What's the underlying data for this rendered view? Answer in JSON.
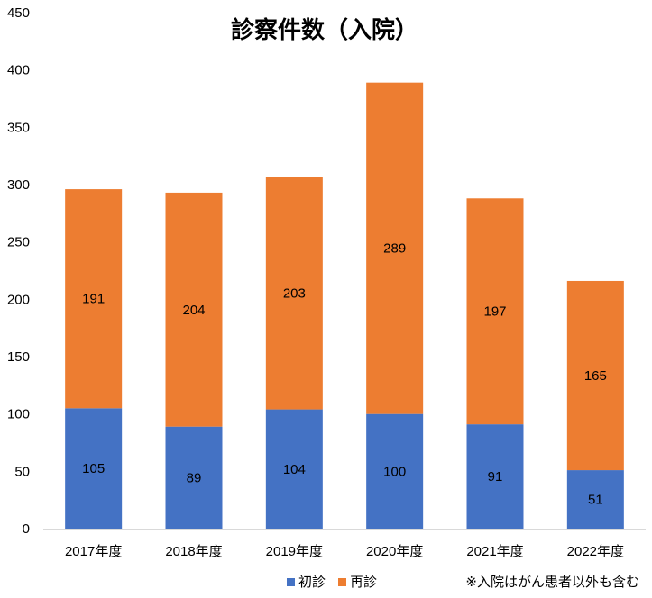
{
  "colors": {
    "first_visit": "#4472C4",
    "return_visit": "#ED7D31",
    "axis_line": "#d9d9d9",
    "text": "#000000"
  },
  "chart_data": {
    "type": "bar",
    "stacked": true,
    "title": "診察件数（入院）",
    "xlabel": "",
    "ylabel": "",
    "ylim": [
      0,
      450
    ],
    "yticks": [
      0,
      50,
      100,
      150,
      200,
      250,
      300,
      350,
      400,
      450
    ],
    "grid": false,
    "legend_position": "bottom",
    "categories": [
      "2017年度",
      "2018年度",
      "2019年度",
      "2020年度",
      "2021年度",
      "2022年度"
    ],
    "series": [
      {
        "name": "初診",
        "values": [
          105,
          89,
          104,
          100,
          91,
          51
        ]
      },
      {
        "name": "再診",
        "values": [
          191,
          204,
          203,
          289,
          197,
          165
        ]
      }
    ],
    "note": "※入院はがん患者以外も含む"
  }
}
